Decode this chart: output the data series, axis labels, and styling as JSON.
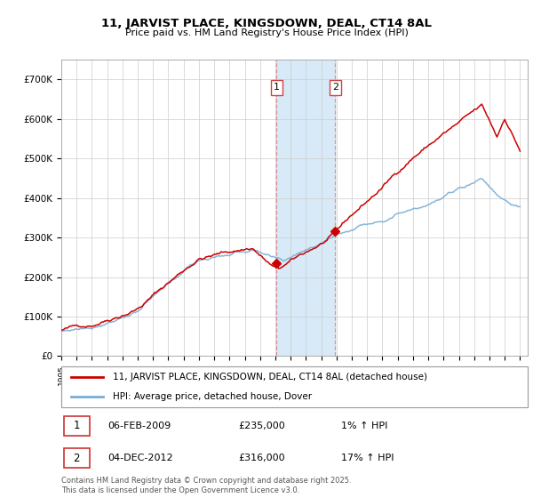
{
  "title": "11, JARVIST PLACE, KINGSDOWN, DEAL, CT14 8AL",
  "subtitle": "Price paid vs. HM Land Registry's House Price Index (HPI)",
  "ylim": [
    0,
    750000
  ],
  "yticks": [
    0,
    100000,
    200000,
    300000,
    400000,
    500000,
    600000,
    700000
  ],
  "ytick_labels": [
    "£0",
    "£100K",
    "£200K",
    "£300K",
    "£400K",
    "£500K",
    "£600K",
    "£700K"
  ],
  "legend_line1": "11, JARVIST PLACE, KINGSDOWN, DEAL, CT14 8AL (detached house)",
  "legend_line2": "HPI: Average price, detached house, Dover",
  "line1_color": "#cc0000",
  "line2_color": "#7aadd4",
  "annotation1_label": "1",
  "annotation1_date": "06-FEB-2009",
  "annotation1_price": "£235,000",
  "annotation1_hpi": "1% ↑ HPI",
  "annotation2_label": "2",
  "annotation2_date": "04-DEC-2012",
  "annotation2_price": "£316,000",
  "annotation2_hpi": "17% ↑ HPI",
  "footer": "Contains HM Land Registry data © Crown copyright and database right 2025.\nThis data is licensed under the Open Government Licence v3.0.",
  "background_color": "#ffffff",
  "grid_color": "#cccccc",
  "shade_color": "#d8eaf7"
}
